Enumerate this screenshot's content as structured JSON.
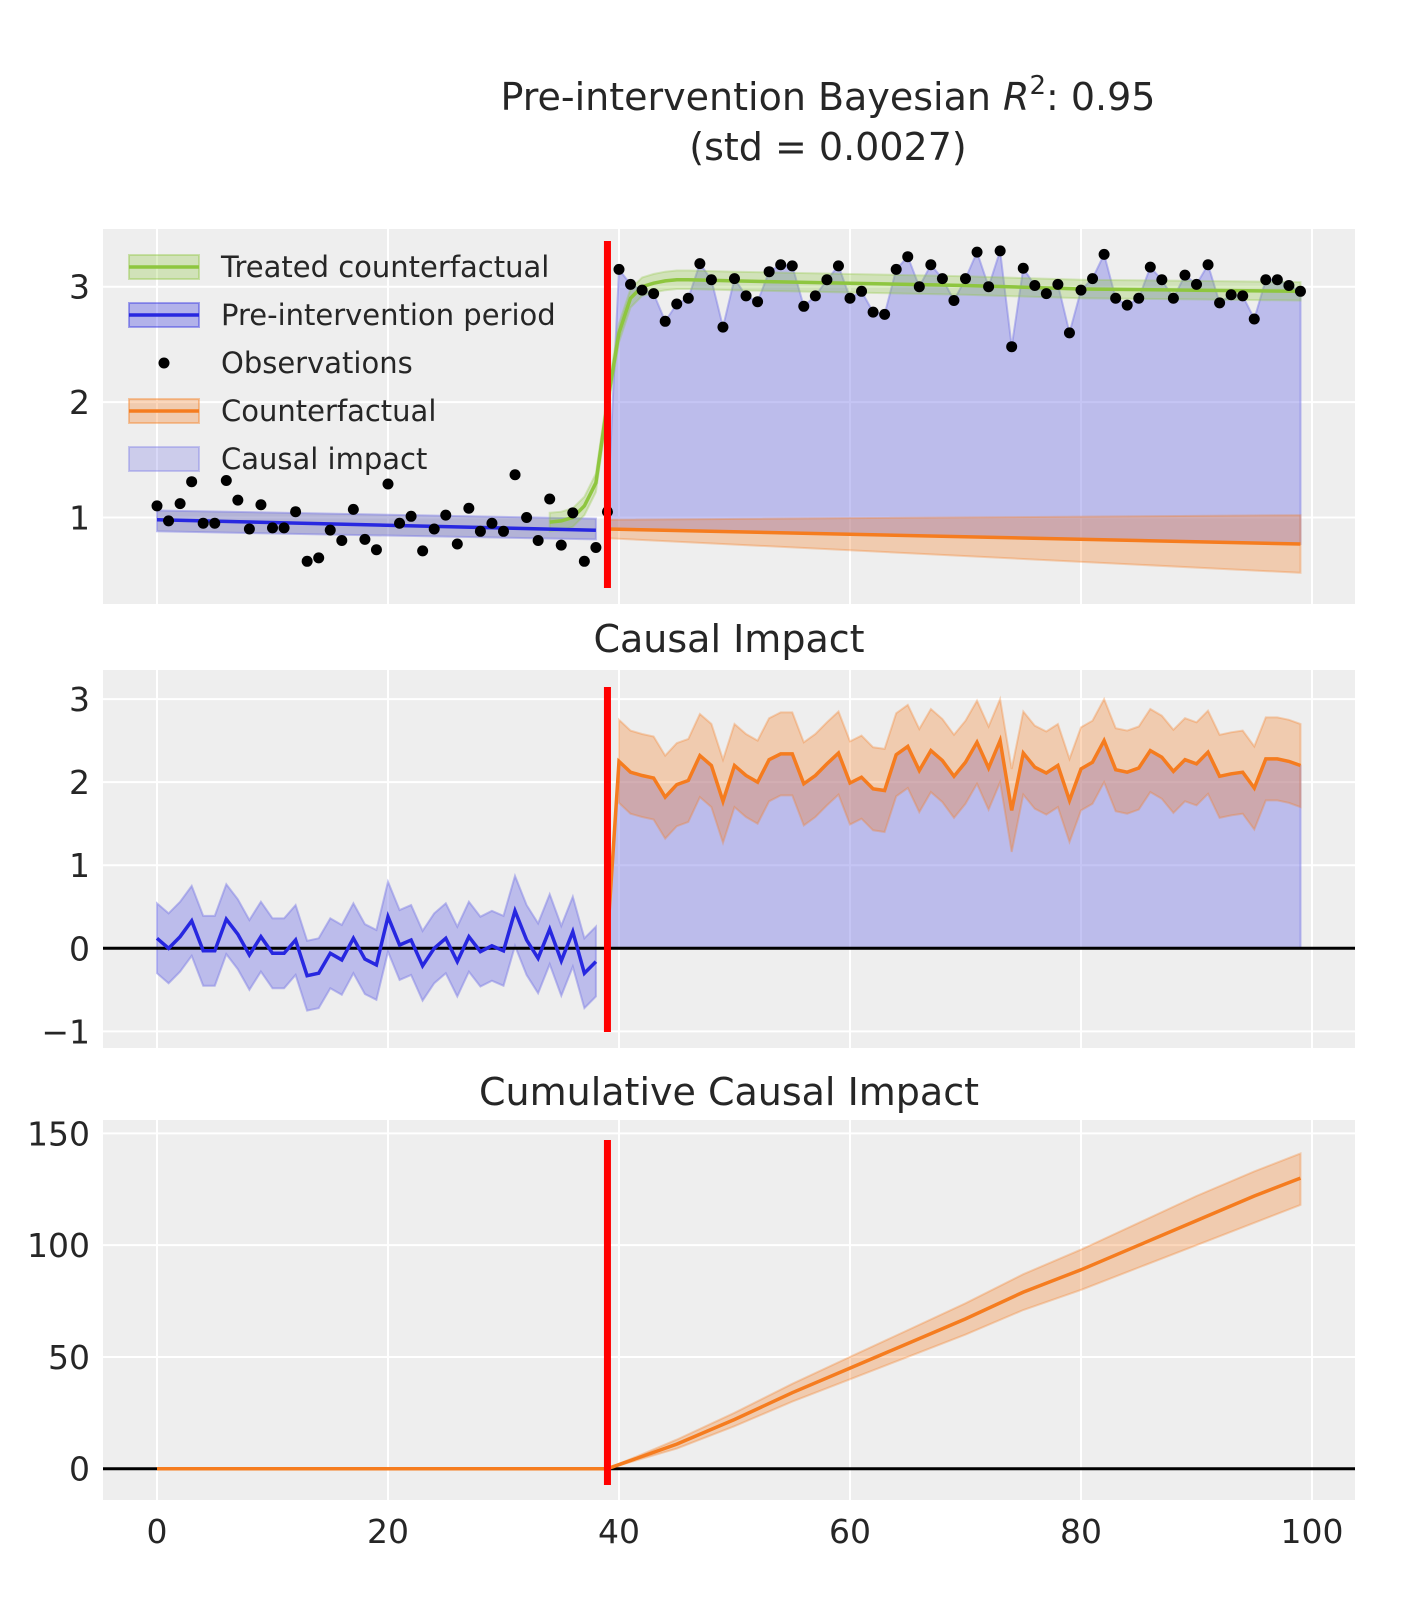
{
  "chart_data": [
    {
      "type": "line",
      "title_main": "Pre-intervention Bayesian ",
      "title_r": "R",
      "title_sup": "2",
      "title_tail": ": 0.95",
      "subtitle": "(std = 0.0027)",
      "xlim": [
        -4.5,
        103.5
      ],
      "ylim": [
        0.25,
        3.5
      ],
      "yticks": [
        1,
        2,
        3
      ],
      "ytick_labels": [
        "1",
        "2",
        "3"
      ],
      "xticks": [
        0,
        20,
        40,
        60,
        80,
        100
      ],
      "grid": true,
      "legend_position": "top-left",
      "legend": [
        {
          "label": "Treated counterfactual",
          "kind": "line-band",
          "color": "#8ec63f"
        },
        {
          "label": "Pre-intervention period",
          "kind": "line-band",
          "color": "#2727e0"
        },
        {
          "label": "Observations",
          "kind": "dot",
          "color": "#000000"
        },
        {
          "label": "Counterfactual",
          "kind": "line-band",
          "color": "#f57c1f"
        },
        {
          "label": "Causal impact",
          "kind": "band",
          "color": "#7f7fe6"
        }
      ],
      "intervention_x": 39,
      "observations": [
        1.1,
        0.97,
        1.12,
        1.31,
        0.95,
        0.95,
        1.32,
        1.15,
        0.9,
        1.11,
        0.91,
        0.91,
        1.05,
        0.62,
        0.65,
        0.89,
        0.8,
        1.07,
        0.81,
        0.72,
        1.29,
        0.95,
        1.01,
        0.71,
        0.9,
        1.02,
        0.77,
        1.08,
        0.88,
        0.95,
        0.88,
        1.37,
        1.0,
        0.8,
        1.16,
        0.76,
        1.04,
        0.62,
        0.74,
        1.05,
        3.15,
        3.02,
        2.97,
        2.94,
        2.7,
        2.85,
        2.9,
        3.2,
        3.06,
        2.65,
        3.07,
        2.92,
        2.87,
        3.13,
        3.19,
        3.18,
        2.83,
        2.92,
        3.06,
        3.18,
        2.9,
        2.96,
        2.78,
        2.76,
        3.15,
        3.26,
        3.0,
        3.19,
        3.07,
        2.88,
        3.07,
        3.3,
        3.0,
        3.31,
        2.48,
        3.16,
        3.01,
        2.94,
        3.02,
        2.6,
        2.97,
        3.07,
        3.28,
        2.9,
        2.84,
        2.9,
        3.17,
        3.06,
        2.9,
        3.1,
        3.02,
        3.19,
        2.86,
        2.93,
        2.92,
        2.72,
        3.06,
        3.06,
        3.01,
        2.96
      ],
      "pre_fit": {
        "x": [
          0,
          38
        ],
        "y": [
          0.98,
          0.89
        ],
        "lower": [
          0.88,
          0.81
        ],
        "upper": [
          1.06,
          0.99
        ]
      },
      "treated_counterfactual": {
        "x": [
          34,
          35,
          36,
          37,
          38,
          39,
          40,
          41,
          42,
          43,
          44,
          45,
          46,
          50,
          60,
          70,
          80,
          90,
          99
        ],
        "y": [
          0.96,
          0.97,
          1.0,
          1.1,
          1.3,
          2.0,
          2.6,
          2.9,
          3.0,
          3.03,
          3.05,
          3.06,
          3.06,
          3.05,
          3.03,
          3.01,
          2.98,
          2.97,
          2.96
        ],
        "band": 0.08
      },
      "counterfactual": {
        "x": [
          39,
          99
        ],
        "y": [
          0.9,
          0.77
        ],
        "lower": [
          0.82,
          0.52
        ],
        "upper": [
          0.98,
          1.02
        ]
      }
    },
    {
      "type": "line",
      "title": "Causal Impact",
      "xlim": [
        -4.5,
        103.5
      ],
      "ylim": [
        -1.2,
        3.35
      ],
      "yticks": [
        -1,
        0,
        1,
        2,
        3
      ],
      "ytick_labels": [
        "−1",
        "0",
        "1",
        "2",
        "3"
      ],
      "xticks": [
        0,
        20,
        40,
        60,
        80,
        100
      ],
      "grid": true,
      "intervention_x": 39,
      "pre_impact": [
        0.12,
        0.0,
        0.14,
        0.33,
        -0.03,
        -0.03,
        0.35,
        0.17,
        -0.08,
        0.14,
        -0.06,
        -0.06,
        0.1,
        -0.33,
        -0.3,
        -0.06,
        -0.14,
        0.12,
        -0.13,
        -0.2,
        0.38,
        0.04,
        0.1,
        -0.21,
        0.0,
        0.12,
        -0.16,
        0.14,
        -0.04,
        0.03,
        -0.03,
        0.45,
        0.1,
        -0.12,
        0.23,
        -0.15,
        0.2,
        -0.3,
        -0.16
      ],
      "pre_band": 0.42,
      "post_impact": [
        0.13,
        2.25,
        2.12,
        2.08,
        2.05,
        1.82,
        1.97,
        2.02,
        2.32,
        2.2,
        1.77,
        2.2,
        2.08,
        2.0,
        2.27,
        2.34,
        2.34,
        1.98,
        2.08,
        2.22,
        2.35,
        1.99,
        2.06,
        1.92,
        1.9,
        2.33,
        2.43,
        2.14,
        2.38,
        2.26,
        2.07,
        2.24,
        2.48,
        2.17,
        2.5,
        1.66,
        2.35,
        2.18,
        2.11,
        2.2,
        1.78,
        2.16,
        2.24,
        2.5,
        2.15,
        2.12,
        2.17,
        2.38,
        2.3,
        2.13,
        2.27,
        2.22,
        2.36,
        2.07,
        2.1,
        2.12,
        1.93,
        2.28,
        2.28,
        2.25,
        2.2
      ],
      "post_band": 0.5
    },
    {
      "type": "line",
      "title": "Cumulative Causal Impact",
      "xlim": [
        -4.5,
        103.5
      ],
      "ylim": [
        -14,
        156
      ],
      "yticks": [
        0,
        50,
        100,
        150
      ],
      "ytick_labels": [
        "0",
        "50",
        "100",
        "150"
      ],
      "xticks": [
        0,
        20,
        40,
        60,
        80,
        100
      ],
      "xtick_labels": [
        "0",
        "20",
        "40",
        "60",
        "80",
        "100"
      ],
      "grid": true,
      "intervention_x": 39,
      "x": [
        0,
        39,
        45,
        50,
        55,
        60,
        65,
        70,
        75,
        80,
        85,
        90,
        95,
        99
      ],
      "y": [
        0,
        0,
        11,
        22,
        34,
        45,
        56,
        67,
        79,
        89,
        100,
        111,
        122,
        130
      ],
      "lower": [
        0,
        0,
        9,
        19,
        30,
        40,
        50,
        60,
        71,
        80,
        90,
        100,
        110,
        118
      ],
      "upper": [
        0,
        0,
        13,
        25,
        38,
        50,
        62,
        74,
        87,
        98,
        110,
        122,
        133,
        141
      ]
    }
  ]
}
